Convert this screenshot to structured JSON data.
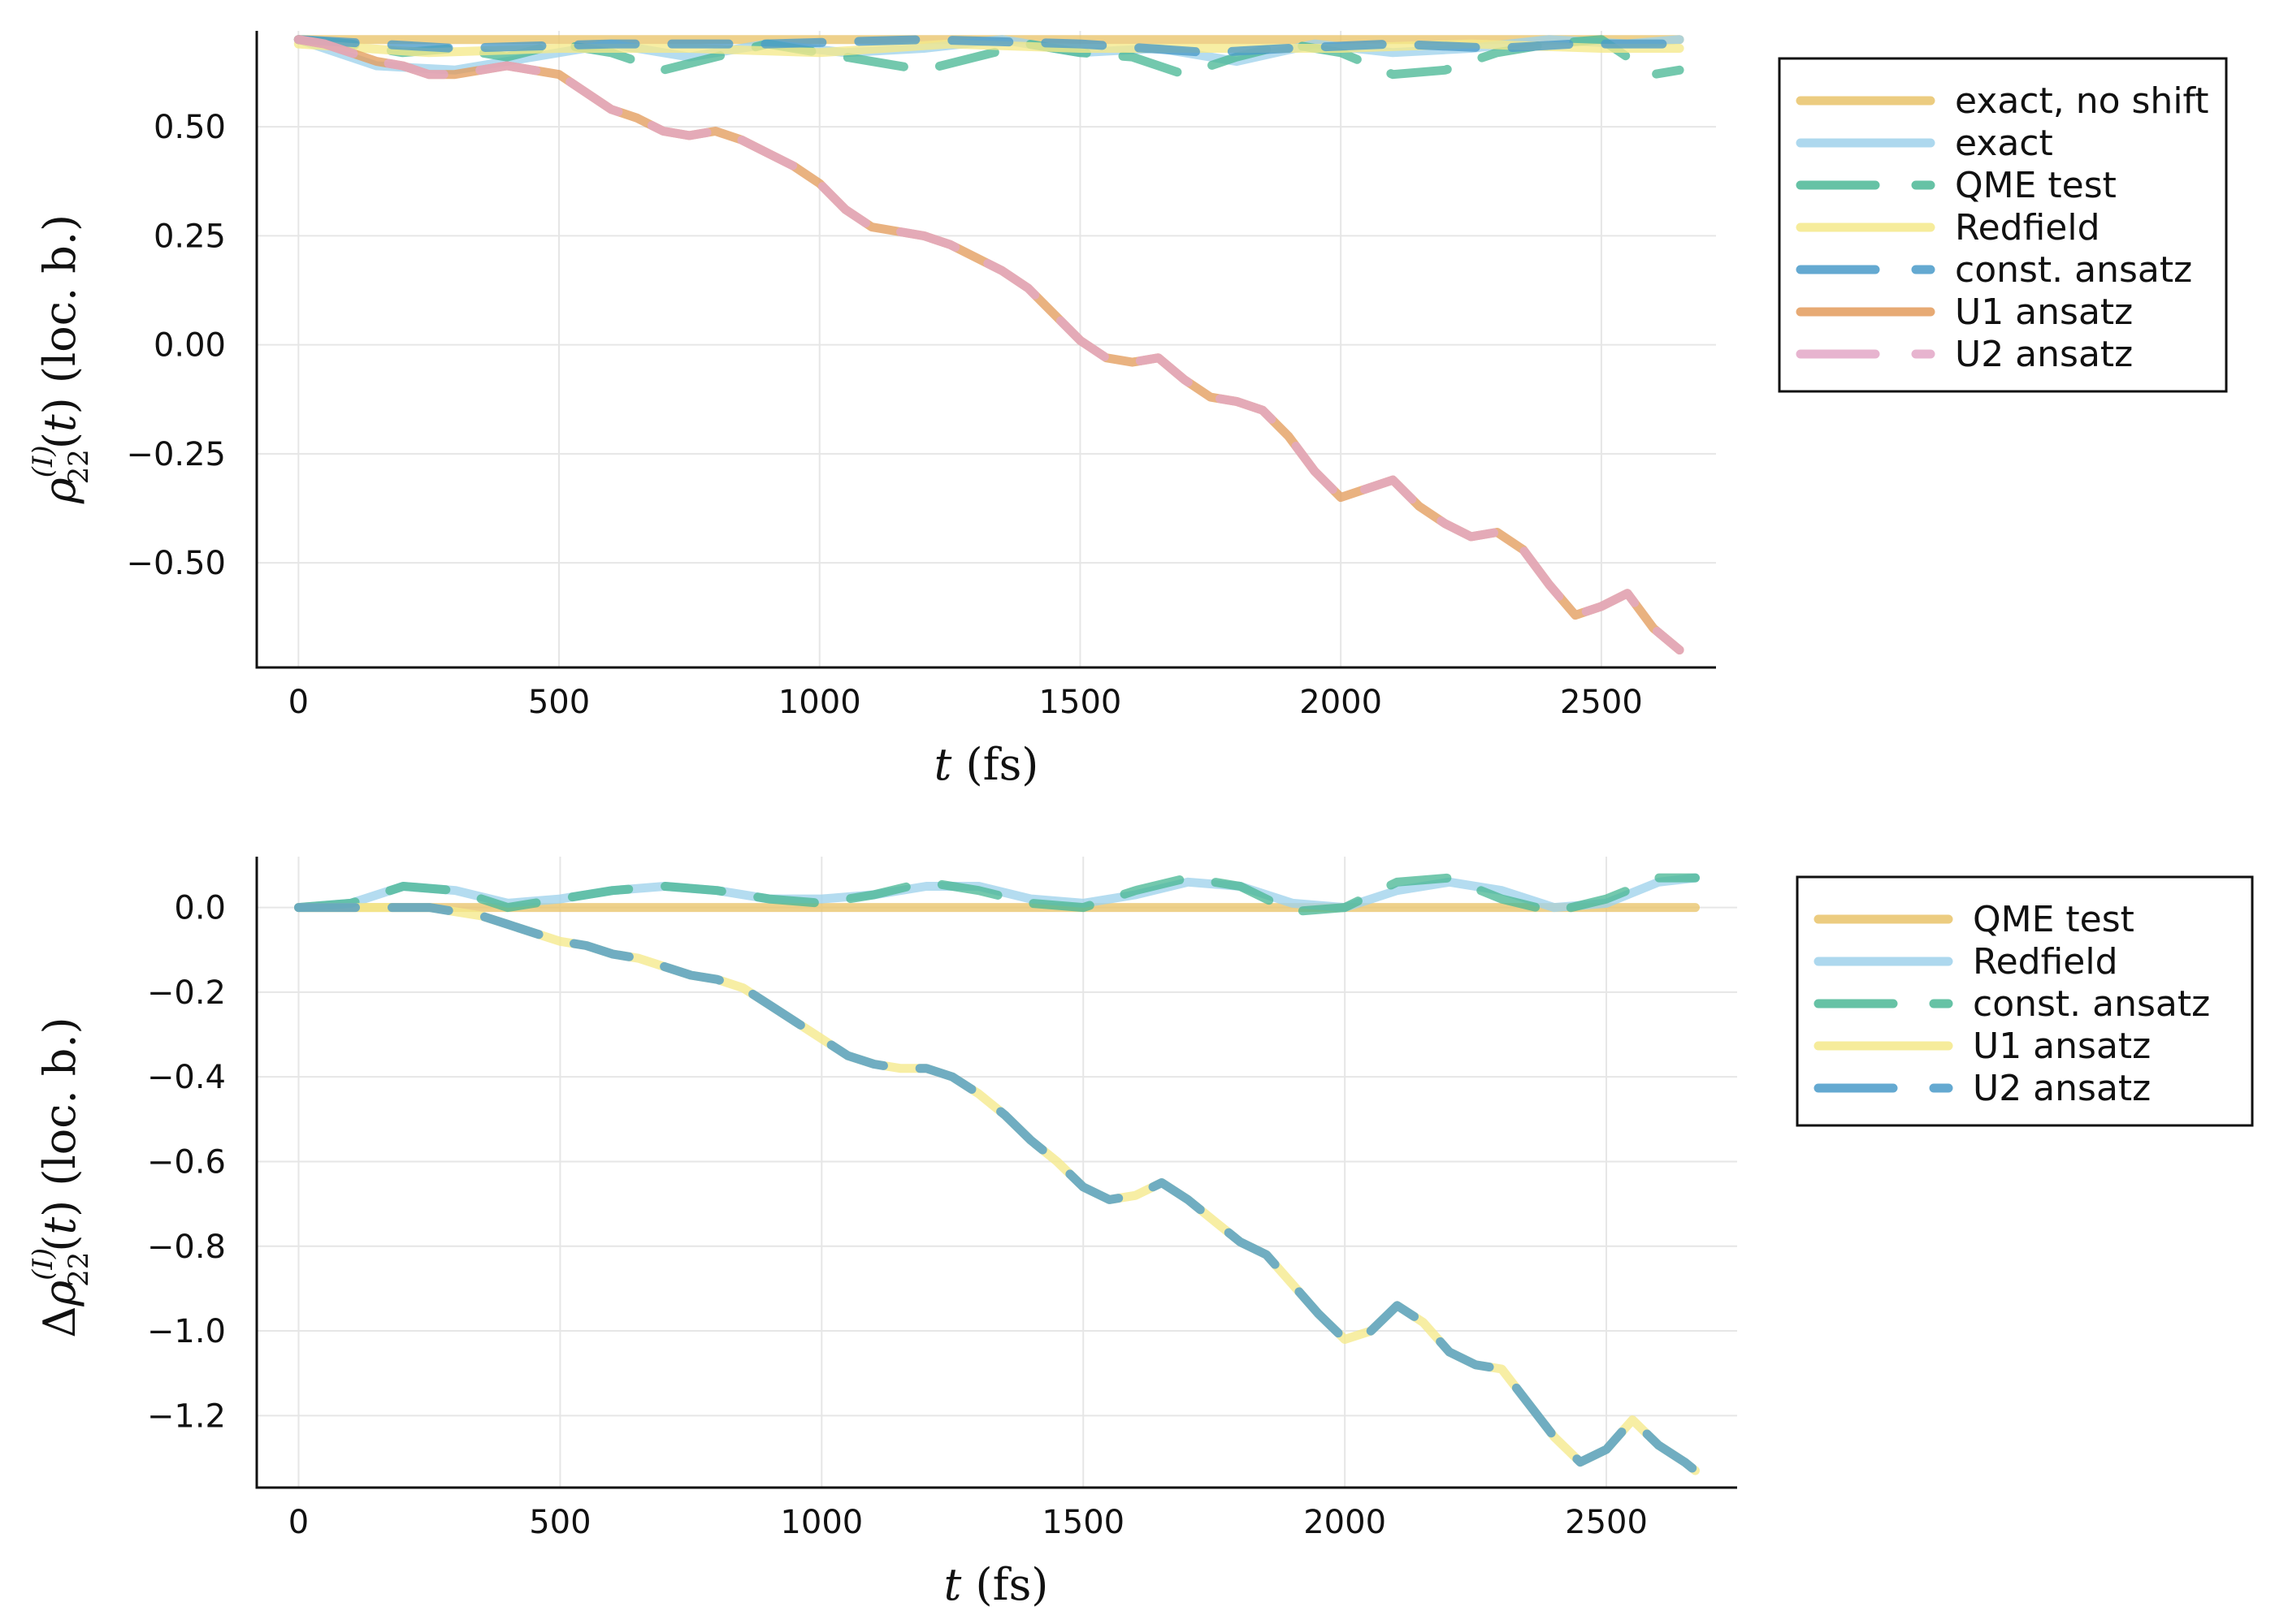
{
  "chart_data": [
    {
      "type": "line",
      "xlabel": "t (fs)",
      "ylabel": "ρ22(I)(t) (loc. b.)",
      "xlim": [
        -80,
        2720
      ],
      "ylim": [
        -0.74,
        0.72
      ],
      "xticks": [
        0,
        500,
        1000,
        1500,
        2000,
        2500
      ],
      "xtick_labels": [
        "0",
        "500",
        "1000",
        "1500",
        "2000",
        "2500"
      ],
      "yticks": [
        0.5,
        0.25,
        0.0,
        -0.25,
        -0.5
      ],
      "ytick_labels": [
        "0.50",
        "0.25",
        "0.00",
        "−0.25",
        "−0.50"
      ],
      "grid": true,
      "legend_position": "outside-right-top",
      "series": [
        {
          "name": "exact, no shift",
          "color": "#e9c46a",
          "dash": "solid",
          "x": [
            0,
            500,
            1000,
            1500,
            2000,
            2650
          ],
          "y": [
            0.7,
            0.7,
            0.7,
            0.7,
            0.7,
            0.7
          ]
        },
        {
          "name": "exact",
          "color": "#9fd2ec",
          "dash": "solid",
          "x": [
            0,
            150,
            300,
            450,
            600,
            750,
            900,
            1050,
            1200,
            1350,
            1500,
            1650,
            1800,
            1950,
            2100,
            2250,
            2400,
            2550,
            2650
          ],
          "y": [
            0.7,
            0.64,
            0.63,
            0.66,
            0.69,
            0.66,
            0.69,
            0.67,
            0.68,
            0.7,
            0.67,
            0.68,
            0.65,
            0.69,
            0.67,
            0.68,
            0.7,
            0.69,
            0.7
          ]
        },
        {
          "name": "QME test",
          "color": "#4cb896",
          "dash": "dash",
          "x": [
            0,
            100,
            200,
            300,
            400,
            500,
            600,
            700,
            800,
            900,
            1000,
            1100,
            1200,
            1300,
            1400,
            1500,
            1600,
            1700,
            1800,
            1900,
            2000,
            2100,
            2200,
            2300,
            2400,
            2500,
            2600,
            2650
          ],
          "y": [
            0.7,
            0.69,
            0.67,
            0.68,
            0.66,
            0.69,
            0.67,
            0.63,
            0.66,
            0.69,
            0.67,
            0.65,
            0.63,
            0.66,
            0.69,
            0.67,
            0.66,
            0.62,
            0.66,
            0.69,
            0.67,
            0.62,
            0.63,
            0.67,
            0.69,
            0.7,
            0.62,
            0.63
          ]
        },
        {
          "name": "Redfield",
          "color": "#f5e98a",
          "dash": "solid",
          "x": [
            0,
            250,
            500,
            750,
            1000,
            1250,
            1500,
            1750,
            2000,
            2250,
            2500,
            2650
          ],
          "y": [
            0.69,
            0.67,
            0.68,
            0.68,
            0.67,
            0.69,
            0.68,
            0.68,
            0.68,
            0.69,
            0.68,
            0.68
          ]
        },
        {
          "name": "const. ansatz",
          "color": "#4a9bc9",
          "dash": "dash",
          "x": [
            0,
            300,
            600,
            900,
            1200,
            1500,
            1750,
            1900,
            2100,
            2300,
            2450,
            2650
          ],
          "y": [
            0.7,
            0.68,
            0.69,
            0.69,
            0.7,
            0.69,
            0.67,
            0.68,
            0.69,
            0.68,
            0.69,
            0.69
          ]
        },
        {
          "name": "U1 ansatz",
          "color": "#e39c5c",
          "dash": "solid",
          "x": [
            0,
            50,
            100,
            150,
            200,
            250,
            300,
            350,
            400,
            450,
            500,
            550,
            600,
            650,
            700,
            750,
            800,
            850,
            900,
            950,
            1000,
            1050,
            1100,
            1150,
            1200,
            1250,
            1300,
            1350,
            1400,
            1450,
            1500,
            1550,
            1600,
            1650,
            1700,
            1750,
            1800,
            1850,
            1900,
            1950,
            2000,
            2050,
            2100,
            2150,
            2200,
            2250,
            2300,
            2350,
            2400,
            2450,
            2500,
            2550,
            2600,
            2650
          ],
          "y": [
            0.7,
            0.69,
            0.67,
            0.65,
            0.64,
            0.62,
            0.62,
            0.63,
            0.64,
            0.63,
            0.62,
            0.58,
            0.54,
            0.52,
            0.49,
            0.48,
            0.49,
            0.47,
            0.44,
            0.41,
            0.37,
            0.31,
            0.27,
            0.26,
            0.25,
            0.23,
            0.2,
            0.17,
            0.13,
            0.07,
            0.01,
            -0.03,
            -0.04,
            -0.03,
            -0.08,
            -0.12,
            -0.13,
            -0.15,
            -0.21,
            -0.29,
            -0.35,
            -0.33,
            -0.31,
            -0.37,
            -0.41,
            -0.44,
            -0.43,
            -0.47,
            -0.55,
            -0.62,
            -0.6,
            -0.57,
            -0.65,
            -0.7
          ]
        },
        {
          "name": "U2 ansatz",
          "color": "#e3a8c7",
          "dash": "dash",
          "x": [
            0,
            50,
            100,
            150,
            200,
            250,
            300,
            350,
            400,
            450,
            500,
            550,
            600,
            650,
            700,
            750,
            800,
            850,
            900,
            950,
            1000,
            1050,
            1100,
            1150,
            1200,
            1250,
            1300,
            1350,
            1400,
            1450,
            1500,
            1550,
            1600,
            1650,
            1700,
            1750,
            1800,
            1850,
            1900,
            1950,
            2000,
            2050,
            2100,
            2150,
            2200,
            2250,
            2300,
            2350,
            2400,
            2450,
            2500,
            2550,
            2600,
            2650
          ],
          "y": [
            0.7,
            0.69,
            0.67,
            0.65,
            0.64,
            0.62,
            0.62,
            0.63,
            0.64,
            0.63,
            0.62,
            0.58,
            0.54,
            0.52,
            0.49,
            0.48,
            0.49,
            0.47,
            0.44,
            0.41,
            0.37,
            0.31,
            0.27,
            0.26,
            0.25,
            0.23,
            0.2,
            0.17,
            0.13,
            0.07,
            0.01,
            -0.03,
            -0.04,
            -0.03,
            -0.08,
            -0.12,
            -0.13,
            -0.15,
            -0.21,
            -0.29,
            -0.35,
            -0.33,
            -0.31,
            -0.37,
            -0.41,
            -0.44,
            -0.43,
            -0.47,
            -0.55,
            -0.62,
            -0.6,
            -0.57,
            -0.65,
            -0.7
          ]
        }
      ]
    },
    {
      "type": "line",
      "xlabel": "t (fs)",
      "ylabel": "Δρ22(I)(t) (loc. b.)",
      "xlim": [
        -80,
        2750
      ],
      "ylim": [
        -1.37,
        0.12
      ],
      "xticks": [
        0,
        500,
        1000,
        1500,
        2000,
        2500
      ],
      "xtick_labels": [
        "0",
        "500",
        "1000",
        "1500",
        "2000",
        "2500"
      ],
      "yticks": [
        0.0,
        -0.2,
        -0.4,
        -0.6,
        -0.8,
        -1.0,
        -1.2
      ],
      "ytick_labels": [
        "0.0",
        "−0.2",
        "−0.4",
        "−0.6",
        "−0.8",
        "−1.0",
        "−1.2"
      ],
      "grid": true,
      "legend_position": "outside-right-top",
      "series": [
        {
          "name": "QME test",
          "color": "#e9c46a",
          "dash": "solid",
          "x": [
            0,
            500,
            1000,
            1500,
            2000,
            2670
          ],
          "y": [
            0.0,
            0.0,
            0.0,
            0.0,
            0.0,
            0.0
          ]
        },
        {
          "name": "Redfield",
          "color": "#9fd2ec",
          "dash": "solid",
          "x": [
            0,
            100,
            200,
            300,
            400,
            500,
            600,
            700,
            800,
            900,
            1000,
            1100,
            1200,
            1300,
            1400,
            1500,
            1600,
            1700,
            1800,
            1900,
            2000,
            2100,
            2200,
            2300,
            2400,
            2500,
            2600,
            2670
          ],
          "y": [
            0.0,
            0.01,
            0.05,
            0.04,
            0.01,
            0.02,
            0.04,
            0.05,
            0.04,
            0.02,
            0.02,
            0.03,
            0.05,
            0.05,
            0.02,
            0.01,
            0.03,
            0.06,
            0.05,
            0.01,
            0.0,
            0.04,
            0.06,
            0.04,
            0.0,
            0.01,
            0.06,
            0.07
          ]
        },
        {
          "name": "const. ansatz",
          "color": "#4cb896",
          "dash": "dash",
          "x": [
            0,
            100,
            200,
            300,
            400,
            500,
            600,
            700,
            800,
            900,
            1000,
            1100,
            1200,
            1300,
            1400,
            1500,
            1600,
            1700,
            1800,
            1900,
            2000,
            2100,
            2200,
            2300,
            2400,
            2500,
            2600,
            2670
          ],
          "y": [
            0.0,
            0.01,
            0.05,
            0.04,
            0.0,
            0.02,
            0.04,
            0.05,
            0.04,
            0.02,
            0.01,
            0.03,
            0.06,
            0.04,
            0.01,
            0.0,
            0.04,
            0.07,
            0.05,
            -0.01,
            0.0,
            0.06,
            0.07,
            0.02,
            -0.01,
            0.02,
            0.07,
            0.07
          ]
        },
        {
          "name": "U1 ansatz",
          "color": "#f5e98a",
          "dash": "solid",
          "x": [
            0,
            50,
            100,
            150,
            200,
            250,
            300,
            350,
            400,
            450,
            500,
            550,
            600,
            650,
            700,
            750,
            800,
            850,
            900,
            950,
            1000,
            1050,
            1100,
            1150,
            1200,
            1250,
            1300,
            1350,
            1400,
            1450,
            1500,
            1550,
            1600,
            1650,
            1700,
            1750,
            1800,
            1850,
            1900,
            1950,
            2000,
            2050,
            2100,
            2150,
            2200,
            2250,
            2300,
            2350,
            2400,
            2450,
            2500,
            2550,
            2600,
            2650,
            2670
          ],
          "y": [
            0.0,
            0.0,
            0.0,
            0.0,
            0.0,
            0.0,
            -0.01,
            -0.02,
            -0.04,
            -0.06,
            -0.08,
            -0.09,
            -0.11,
            -0.12,
            -0.14,
            -0.16,
            -0.17,
            -0.19,
            -0.23,
            -0.27,
            -0.31,
            -0.35,
            -0.37,
            -0.38,
            -0.38,
            -0.4,
            -0.44,
            -0.49,
            -0.55,
            -0.6,
            -0.66,
            -0.69,
            -0.68,
            -0.65,
            -0.69,
            -0.74,
            -0.79,
            -0.82,
            -0.89,
            -0.96,
            -1.02,
            -1.0,
            -0.94,
            -0.98,
            -1.05,
            -1.08,
            -1.09,
            -1.17,
            -1.25,
            -1.31,
            -1.28,
            -1.21,
            -1.27,
            -1.31,
            -1.33
          ]
        },
        {
          "name": "U2 ansatz",
          "color": "#4a9bc9",
          "dash": "dash",
          "x": [
            0,
            50,
            100,
            150,
            200,
            250,
            300,
            350,
            400,
            450,
            500,
            550,
            600,
            650,
            700,
            750,
            800,
            850,
            900,
            950,
            1000,
            1050,
            1100,
            1150,
            1200,
            1250,
            1300,
            1350,
            1400,
            1450,
            1500,
            1550,
            1600,
            1650,
            1700,
            1750,
            1800,
            1850,
            1900,
            1950,
            2000,
            2050,
            2100,
            2150,
            2200,
            2250,
            2300,
            2350,
            2400,
            2450,
            2500,
            2550,
            2600,
            2650,
            2670
          ],
          "y": [
            0.0,
            0.0,
            0.0,
            0.0,
            0.0,
            0.0,
            -0.01,
            -0.02,
            -0.04,
            -0.06,
            -0.08,
            -0.09,
            -0.11,
            -0.12,
            -0.14,
            -0.16,
            -0.17,
            -0.19,
            -0.23,
            -0.27,
            -0.31,
            -0.35,
            -0.37,
            -0.38,
            -0.38,
            -0.4,
            -0.44,
            -0.49,
            -0.55,
            -0.6,
            -0.66,
            -0.69,
            -0.68,
            -0.65,
            -0.69,
            -0.74,
            -0.79,
            -0.82,
            -0.89,
            -0.96,
            -1.02,
            -1.0,
            -0.94,
            -0.98,
            -1.05,
            -1.08,
            -1.09,
            -1.17,
            -1.25,
            -1.31,
            -1.28,
            -1.21,
            -1.27,
            -1.31,
            -1.33
          ]
        }
      ]
    }
  ]
}
